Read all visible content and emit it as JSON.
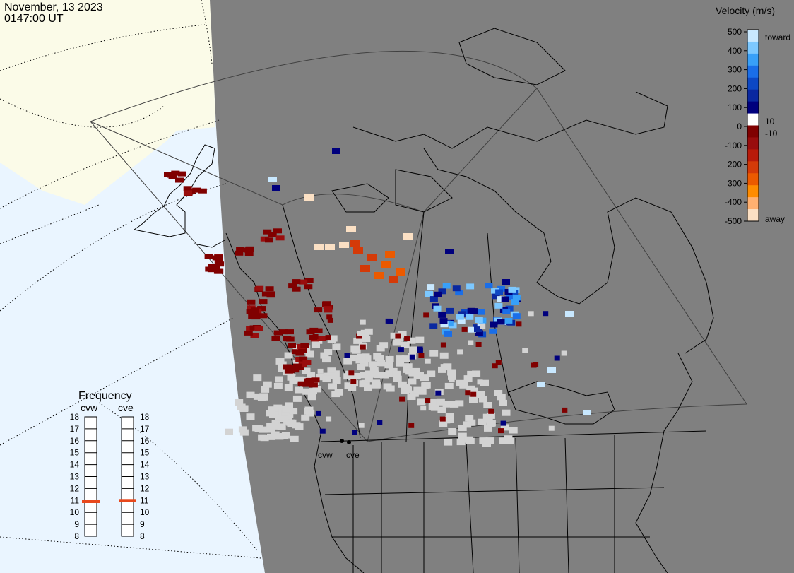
{
  "header": {
    "date": "November, 13 2023",
    "time": "0147:00 UT"
  },
  "colorbar": {
    "title": "Velocity (m/s)",
    "toward_label": "toward",
    "away_label": "away",
    "ticks": [
      "500",
      "400",
      "300",
      "200",
      "100",
      "0",
      "-100",
      "-200",
      "-300",
      "-400",
      "-500"
    ],
    "threshold_pos": "10",
    "threshold_neg": "-10",
    "colors": [
      "#fbe0c4",
      "#ffb070",
      "#ff8c00",
      "#ec5a00",
      "#d43a08",
      "#b81a0a",
      "#990d0d",
      "#800000",
      "#ffffff",
      "#00007d",
      "#0a28a0",
      "#0d48c4",
      "#1a6ee8",
      "#38a0f8",
      "#7cc8ff",
      "#c8e8ff"
    ]
  },
  "frequency": {
    "title": "Frequency",
    "radars": [
      "cvw",
      "cve"
    ],
    "ticks": [
      "18",
      "17",
      "16",
      "15",
      "14",
      "13",
      "12",
      "11",
      "10",
      "9",
      "8"
    ],
    "values_mhz": [
      10.9,
      11.0
    ]
  },
  "map": {
    "station_labels": [
      "cvw",
      "cve"
    ],
    "colors": {
      "land_dark": "#808080",
      "land_day": "#fbfbe8",
      "ocean_day": "#eaf5ff",
      "scatter": "#d3d3d3"
    }
  }
}
